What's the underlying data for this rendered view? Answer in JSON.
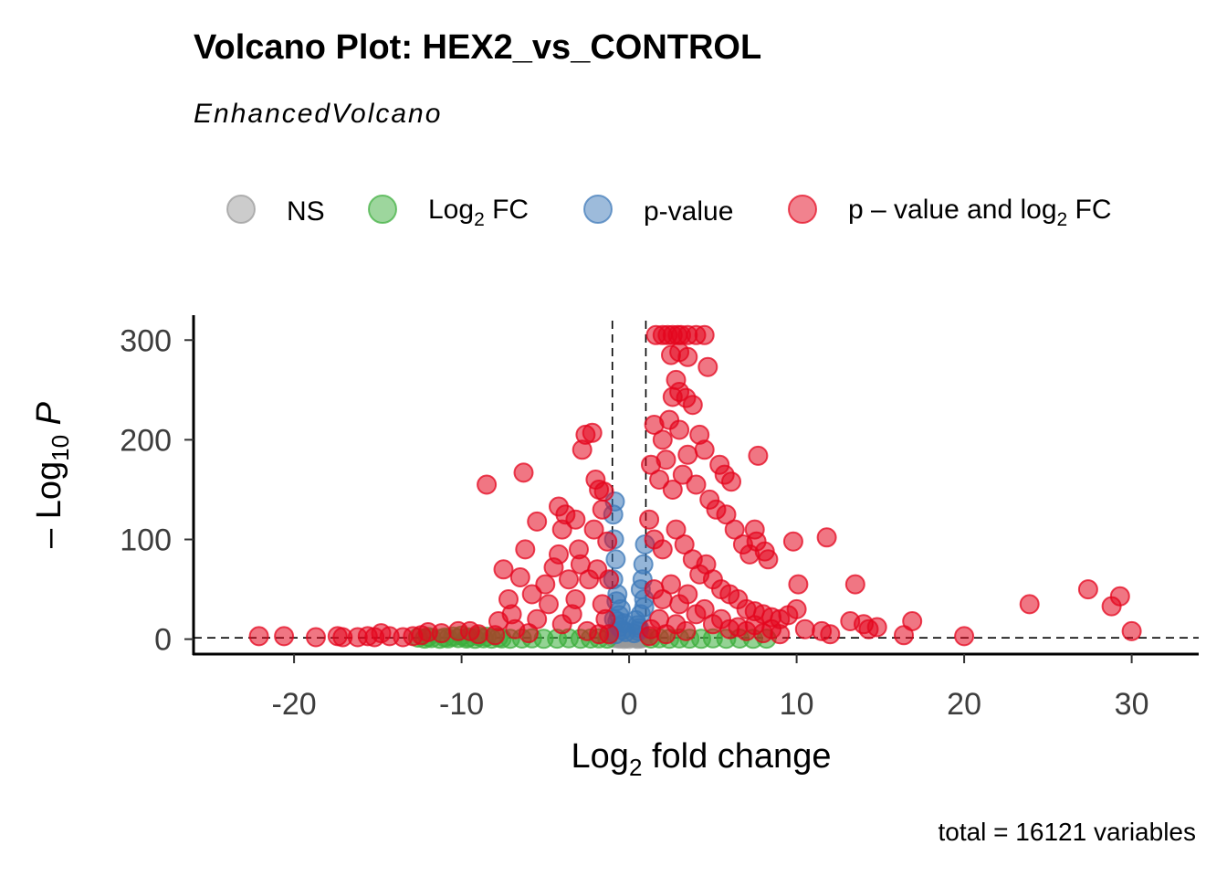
{
  "chart_data": {
    "type": "scatter",
    "title": "Volcano Plot: HEX2_vs_CONTROL",
    "subtitle": "EnhancedVolcano",
    "xlabel": {
      "base": "Log",
      "sub": "2",
      "rest": " fold change"
    },
    "ylabel": {
      "prefix": "– Log",
      "sub": "10",
      "rest": " P"
    },
    "caption": "total = 16121 variables",
    "xlim": [
      -26,
      34
    ],
    "ylim": [
      -15,
      325
    ],
    "xticks": [
      -20,
      -10,
      0,
      10,
      20,
      30
    ],
    "xtick_labels": [
      "-20",
      "-10",
      "0",
      "10",
      "20",
      "30"
    ],
    "yticks": [
      0,
      100,
      200,
      300
    ],
    "ytick_labels": [
      "0",
      "100",
      "200",
      "300"
    ],
    "fc_cutoff": [
      -1,
      1
    ],
    "p_cutoff_y": 1.3,
    "grid": false,
    "legend_position": "top",
    "legend": [
      {
        "key": "ns",
        "label": "NS",
        "color": "#999999"
      },
      {
        "key": "fc",
        "label_base": "Log",
        "label_sub": "2",
        "label_rest": " FC",
        "color": "#3cae3c"
      },
      {
        "key": "p",
        "label": "p-value",
        "color": "#3c78b8"
      },
      {
        "key": "both",
        "label_base": "p – value and log",
        "label_sub": "2",
        "label_rest": " FC",
        "color": "#e4061d"
      }
    ],
    "series": [
      {
        "key": "ns",
        "points": [
          [
            -0.9,
            1
          ],
          [
            -0.6,
            0.5
          ],
          [
            -0.4,
            2
          ],
          [
            -0.2,
            1.2
          ],
          [
            0,
            0.4
          ],
          [
            0.2,
            1.8
          ],
          [
            0.4,
            0.9
          ],
          [
            0.6,
            2.5
          ],
          [
            0.8,
            1.1
          ],
          [
            -0.8,
            3
          ],
          [
            0.1,
            3.5
          ],
          [
            -0.3,
            0.2
          ],
          [
            0.5,
            0.3
          ],
          [
            0.9,
            2.2
          ],
          [
            -0.5,
            4
          ],
          [
            0.3,
            5
          ],
          [
            -0.1,
            6
          ],
          [
            0.7,
            0.6
          ],
          [
            -0.7,
            1.5
          ],
          [
            0.05,
            2.8
          ]
        ]
      },
      {
        "key": "fc",
        "points": [
          [
            -12.2,
            0.5
          ],
          [
            -11.8,
            1
          ],
          [
            -11.3,
            0.4
          ],
          [
            -10.8,
            0.8
          ],
          [
            -10.2,
            1
          ],
          [
            -9.7,
            0.6
          ],
          [
            -9.2,
            0.3
          ],
          [
            -8.7,
            0.9
          ],
          [
            -8.2,
            0.5
          ],
          [
            -7.6,
            0.7
          ],
          [
            -7.1,
            0.4
          ],
          [
            -6.4,
            0.6
          ],
          [
            -5.8,
            0.8
          ],
          [
            -5.1,
            0.3
          ],
          [
            -4.3,
            0.5
          ],
          [
            -3.6,
            0.9
          ],
          [
            -2.9,
            0.4
          ],
          [
            -2.3,
            0.6
          ],
          [
            -1.8,
            0.8
          ],
          [
            -1.3,
            0.5
          ],
          [
            1.3,
            0.6
          ],
          [
            1.8,
            0.9
          ],
          [
            2.4,
            0.4
          ],
          [
            3,
            0.7
          ],
          [
            3.6,
            0.5
          ],
          [
            4.3,
            0.3
          ],
          [
            5,
            0.8
          ],
          [
            5.8,
            0.4
          ],
          [
            6.6,
            0.6
          ],
          [
            7.4,
            0.3
          ],
          [
            8.2,
            0.5
          ],
          [
            -12,
            2.2
          ],
          [
            -10.5,
            2.6
          ],
          [
            -9.6,
            1.9
          ],
          [
            -8.5,
            2.4
          ],
          [
            -11,
            1.8
          ],
          [
            -7.8,
            1.7
          ],
          [
            -12.6,
            1.5
          ],
          [
            -9,
            2.9
          ],
          [
            -10,
            3.6
          ]
        ]
      },
      {
        "key": "p",
        "points": [
          [
            -0.8,
            5
          ],
          [
            -0.6,
            12
          ],
          [
            -0.9,
            20
          ],
          [
            -0.5,
            30
          ],
          [
            -0.7,
            45
          ],
          [
            -0.95,
            60
          ],
          [
            -0.8,
            80
          ],
          [
            -0.9,
            100
          ],
          [
            -0.95,
            125
          ],
          [
            -0.85,
            138
          ],
          [
            -0.7,
            18
          ],
          [
            -0.4,
            9
          ],
          [
            -0.3,
            16
          ],
          [
            -0.2,
            7
          ],
          [
            0.3,
            6
          ],
          [
            0.5,
            14
          ],
          [
            0.7,
            25
          ],
          [
            0.9,
            40
          ],
          [
            0.8,
            60
          ],
          [
            0.6,
            11
          ],
          [
            0.4,
            19
          ],
          [
            0.85,
            75
          ],
          [
            0.95,
            95
          ],
          [
            0.9,
            32
          ],
          [
            -0.6,
            24
          ],
          [
            0.7,
            50
          ],
          [
            -0.75,
            38
          ],
          [
            0.55,
            8
          ]
        ]
      },
      {
        "key": "both",
        "points": [
          [
            -22.1,
            3
          ],
          [
            -20.6,
            3
          ],
          [
            -18.7,
            2
          ],
          [
            -17.4,
            3
          ],
          [
            -17.1,
            2
          ],
          [
            -16.2,
            2
          ],
          [
            -15.6,
            3
          ],
          [
            -15.2,
            2
          ],
          [
            -14.8,
            6
          ],
          [
            -14.3,
            3
          ],
          [
            -13.5,
            2
          ],
          [
            -12.9,
            3
          ],
          [
            -12.4,
            4
          ],
          [
            -8.5,
            155
          ],
          [
            -6.3,
            167
          ],
          [
            -5.5,
            118
          ],
          [
            -4.2,
            133
          ],
          [
            -4,
            110
          ],
          [
            -3.8,
            125
          ],
          [
            -3.2,
            120
          ],
          [
            -2.8,
            190
          ],
          [
            -2.6,
            205
          ],
          [
            -2.2,
            207
          ],
          [
            -2,
            160
          ],
          [
            -1.8,
            150
          ],
          [
            -1.6,
            130
          ],
          [
            -1.5,
            148
          ],
          [
            -1.3,
            98
          ],
          [
            -1.2,
            60
          ],
          [
            -6.2,
            90
          ],
          [
            -6.5,
            62
          ],
          [
            -7,
            25
          ],
          [
            -7.5,
            70
          ],
          [
            -7.8,
            18
          ],
          [
            -7.2,
            40
          ],
          [
            -6.8,
            10
          ],
          [
            -5.8,
            45
          ],
          [
            -5,
            55
          ],
          [
            -4.8,
            35
          ],
          [
            -4.5,
            72
          ],
          [
            -4.2,
            85
          ],
          [
            -3.6,
            60
          ],
          [
            -3.2,
            40
          ],
          [
            -3,
            90
          ],
          [
            -2.9,
            75
          ],
          [
            -2.4,
            60
          ],
          [
            -2.1,
            110
          ],
          [
            -1.9,
            70
          ],
          [
            -1.6,
            35
          ],
          [
            -1.4,
            20
          ],
          [
            -5.5,
            20
          ],
          [
            -4,
            15
          ],
          [
            -3.4,
            25
          ],
          [
            -2.5,
            8
          ],
          [
            -1.8,
            5
          ],
          [
            -6,
            6
          ],
          [
            -8,
            4
          ],
          [
            -9,
            5
          ],
          [
            -9.5,
            8
          ],
          [
            -10.2,
            8
          ],
          [
            -11.2,
            6
          ],
          [
            -12,
            7
          ],
          [
            1.6,
            305
          ],
          [
            2,
            305
          ],
          [
            2.3,
            305
          ],
          [
            2.6,
            305
          ],
          [
            2.9,
            305
          ],
          [
            3.1,
            305
          ],
          [
            3.5,
            305
          ],
          [
            4,
            305
          ],
          [
            4.5,
            305
          ],
          [
            2.5,
            285
          ],
          [
            3,
            288
          ],
          [
            2.8,
            260
          ],
          [
            3.5,
            283
          ],
          [
            4.7,
            273
          ],
          [
            3,
            248
          ],
          [
            2.6,
            243
          ],
          [
            3.4,
            242
          ],
          [
            1.5,
            215
          ],
          [
            2,
            200
          ],
          [
            2.4,
            220
          ],
          [
            3,
            210
          ],
          [
            3.8,
            235
          ],
          [
            4.2,
            205
          ],
          [
            4.5,
            190
          ],
          [
            5.4,
            175
          ],
          [
            5.7,
            165
          ],
          [
            7.7,
            184
          ],
          [
            6.1,
            158
          ],
          [
            3.5,
            185
          ],
          [
            2.2,
            180
          ],
          [
            1.3,
            175
          ],
          [
            1.8,
            160
          ],
          [
            2.6,
            150
          ],
          [
            3.2,
            165
          ],
          [
            4,
            155
          ],
          [
            4.8,
            140
          ],
          [
            5.2,
            130
          ],
          [
            5.8,
            125
          ],
          [
            6.3,
            110
          ],
          [
            6.8,
            95
          ],
          [
            7.2,
            85
          ],
          [
            7.5,
            110
          ],
          [
            7.6,
            98
          ],
          [
            8.1,
            88
          ],
          [
            8.3,
            80
          ],
          [
            9.8,
            98
          ],
          [
            11.8,
            102
          ],
          [
            10.1,
            55
          ],
          [
            13.5,
            55
          ],
          [
            1.2,
            120
          ],
          [
            1.5,
            100
          ],
          [
            2,
            90
          ],
          [
            2.8,
            110
          ],
          [
            3.3,
            95
          ],
          [
            3.8,
            80
          ],
          [
            4.2,
            65
          ],
          [
            4.6,
            75
          ],
          [
            5,
            60
          ],
          [
            5.5,
            50
          ],
          [
            6,
            45
          ],
          [
            6.5,
            40
          ],
          [
            7,
            30
          ],
          [
            7.5,
            28
          ],
          [
            8,
            25
          ],
          [
            8.5,
            22
          ],
          [
            9,
            20
          ],
          [
            9.5,
            24
          ],
          [
            10,
            30
          ],
          [
            1.5,
            50
          ],
          [
            2,
            40
          ],
          [
            2.5,
            55
          ],
          [
            3,
            35
          ],
          [
            3.5,
            45
          ],
          [
            4,
            25
          ],
          [
            4.5,
            30
          ],
          [
            5,
            15
          ],
          [
            5.5,
            20
          ],
          [
            6,
            10
          ],
          [
            6.5,
            12
          ],
          [
            7,
            8
          ],
          [
            7.5,
            14
          ],
          [
            8,
            6
          ],
          [
            8.5,
            10
          ],
          [
            9,
            5
          ],
          [
            1.3,
            10
          ],
          [
            1.8,
            20
          ],
          [
            2.2,
            5
          ],
          [
            2.8,
            15
          ],
          [
            3.4,
            8
          ],
          [
            10.5,
            10
          ],
          [
            11.5,
            8
          ],
          [
            12,
            5
          ],
          [
            13.2,
            18
          ],
          [
            14,
            15
          ],
          [
            14.3,
            10
          ],
          [
            14.8,
            12
          ],
          [
            16.4,
            4
          ],
          [
            16.9,
            18
          ],
          [
            20,
            3
          ],
          [
            23.9,
            35
          ],
          [
            27.4,
            50
          ],
          [
            28.8,
            33
          ],
          [
            29.3,
            43
          ],
          [
            30,
            8
          ],
          [
            -1.2,
            5
          ],
          [
            1.2,
            3
          ]
        ]
      }
    ]
  }
}
